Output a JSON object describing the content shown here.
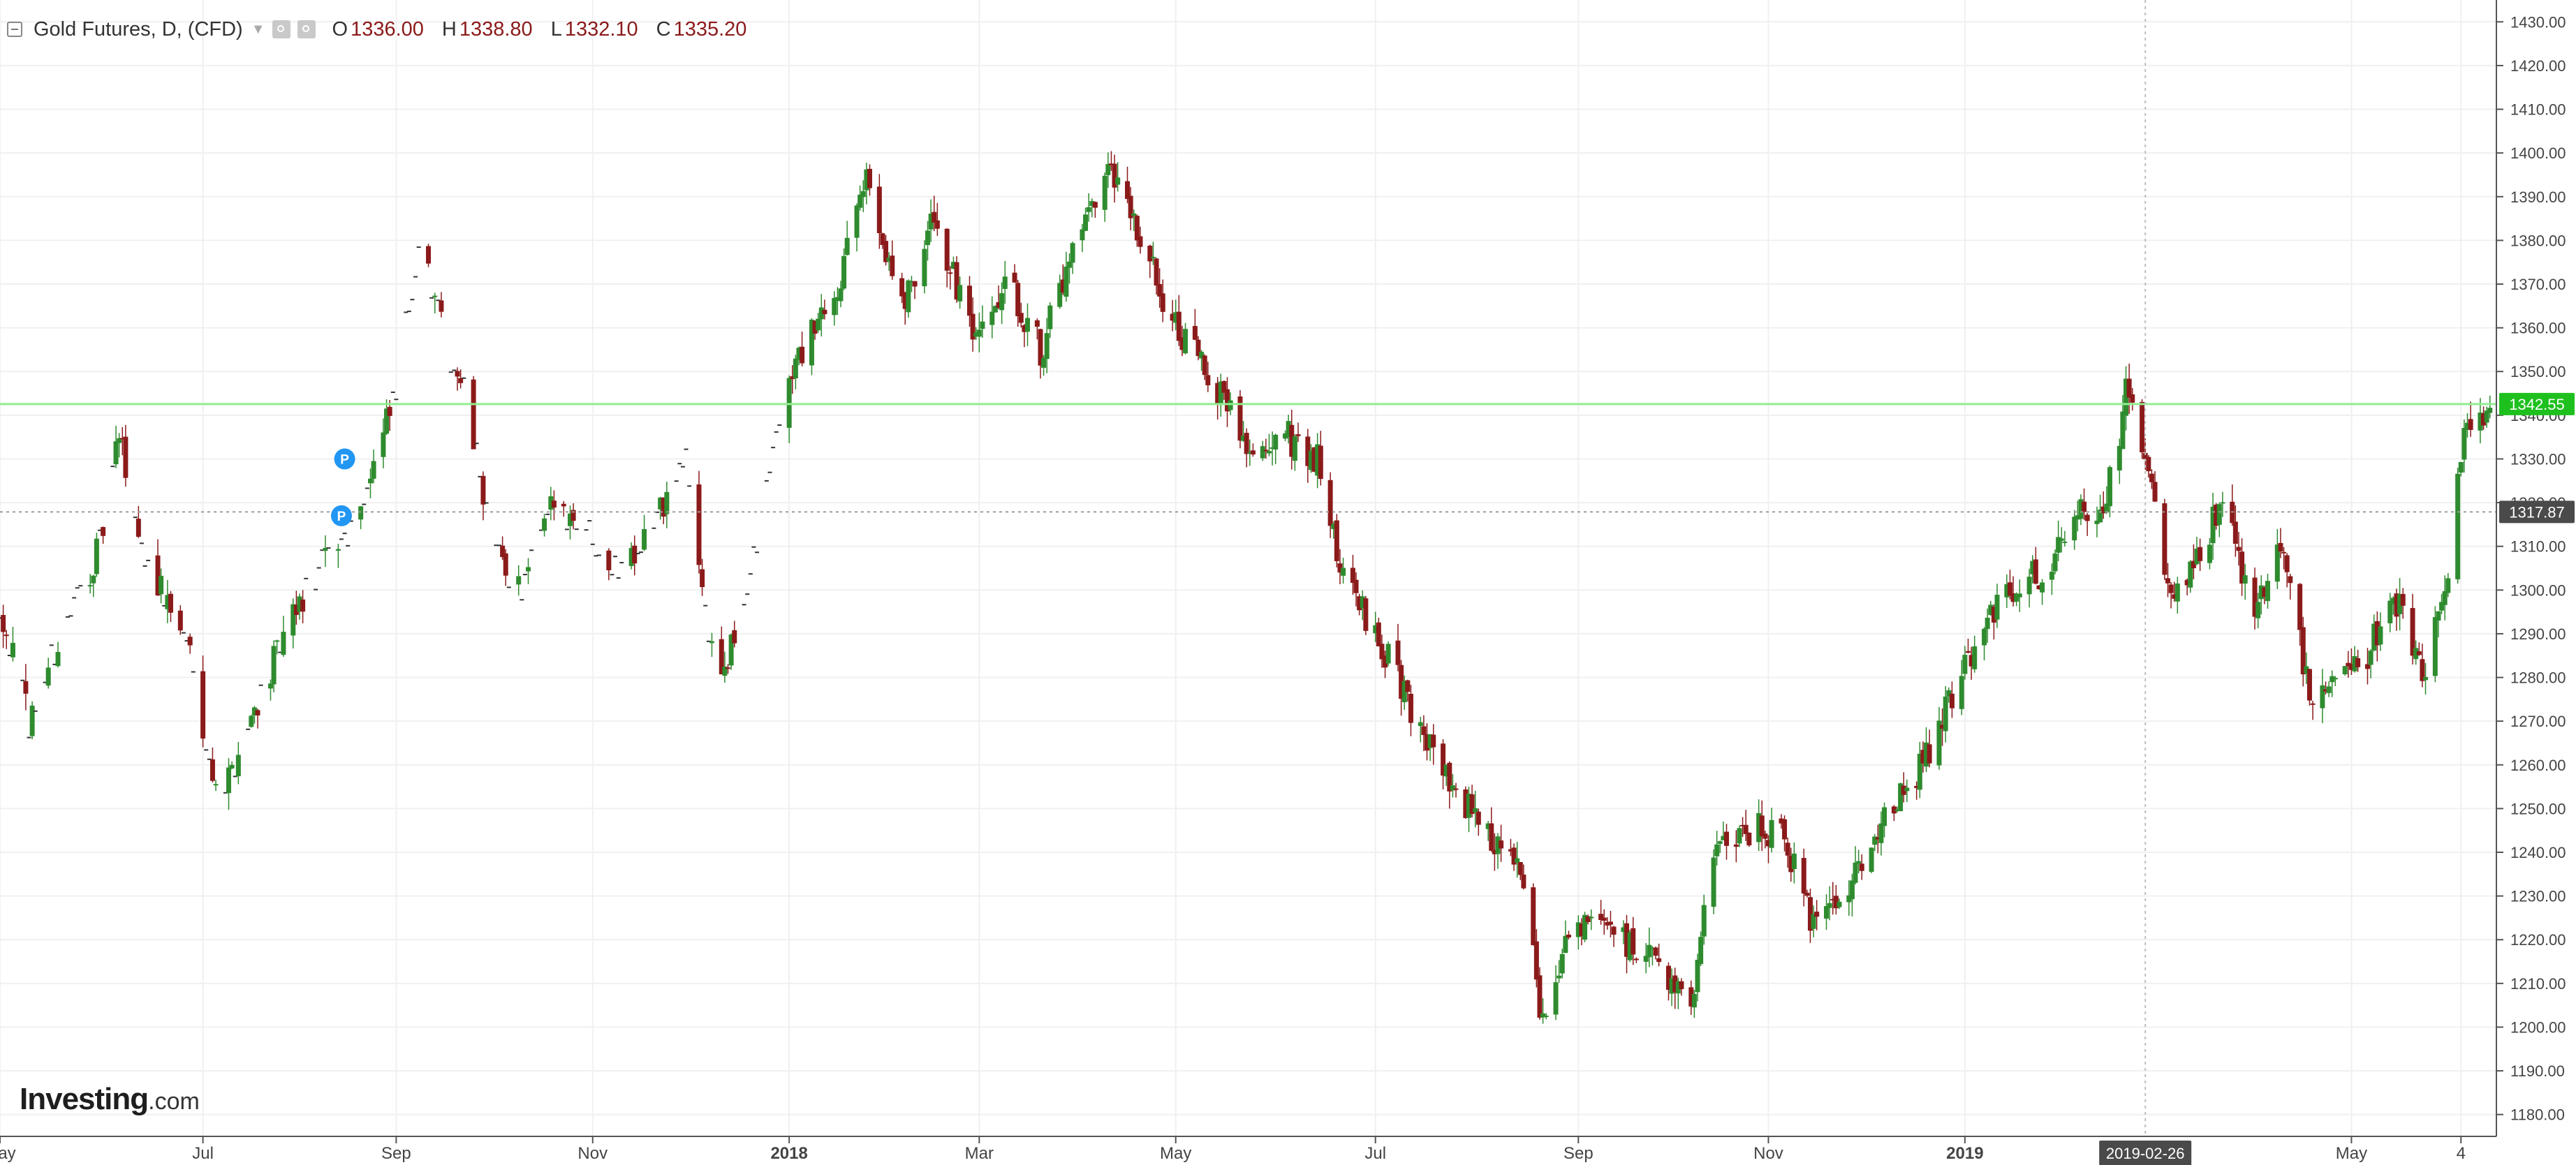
{
  "legend": {
    "title": "Gold Futures, D, (CFD)",
    "open_label": "O",
    "open": "1336.00",
    "high_label": "H",
    "high": "1338.80",
    "low_label": "L",
    "low": "1332.10",
    "close_label": "C",
    "close": "1335.20"
  },
  "logo": {
    "brand": "Investing",
    "domain": ".com"
  },
  "colors": {
    "up": "#2e8b2e",
    "down": "#8b1a1a",
    "price_line": "#90ee90",
    "price_badge": "#1ec01e",
    "crosshair_badge": "#4a4a4a",
    "grid": "#f0f0f0"
  },
  "chart_data": {
    "type": "candlestick",
    "title": "Gold Futures, D, (CFD)",
    "y_axis": {
      "range": [
        1175,
        1435
      ],
      "ticks": [
        1180,
        1190,
        1200,
        1210,
        1220,
        1230,
        1240,
        1250,
        1260,
        1270,
        1280,
        1290,
        1300,
        1310,
        1320,
        1330,
        1340,
        1350,
        1360,
        1370,
        1380,
        1390,
        1400,
        1410,
        1420,
        1430
      ],
      "tick_labels": [
        "1180.00",
        "1190.00",
        "1200.00",
        "1210.00",
        "1220.00",
        "1230.00",
        "1240.00",
        "1250.00",
        "1260.00",
        "1270.00",
        "1280.00",
        "1290.00",
        "1300.00",
        "1310.00",
        "1320.00",
        "1330.00",
        "1340.00",
        "1350.00",
        "1360.00",
        "1370.00",
        "1380.00",
        "1390.00",
        "1400.00",
        "1410.00",
        "1420.00",
        "1430.00"
      ]
    },
    "x_axis": {
      "range": [
        "2017-05-01",
        "2019-06-15"
      ],
      "ticks": [
        {
          "date": "2017-05-01",
          "label": "May",
          "bold": false
        },
        {
          "date": "2017-07-03",
          "label": "Jul",
          "bold": false
        },
        {
          "date": "2017-09-01",
          "label": "Sep",
          "bold": false
        },
        {
          "date": "2017-11-01",
          "label": "Nov",
          "bold": false
        },
        {
          "date": "2018-01-01",
          "label": "2018",
          "bold": true
        },
        {
          "date": "2018-03-01",
          "label": "Mar",
          "bold": false
        },
        {
          "date": "2018-05-01",
          "label": "May",
          "bold": false
        },
        {
          "date": "2018-07-02",
          "label": "Jul",
          "bold": false
        },
        {
          "date": "2018-09-03",
          "label": "Sep",
          "bold": false
        },
        {
          "date": "2018-11-01",
          "label": "Nov",
          "bold": false
        },
        {
          "date": "2019-01-01",
          "label": "2019",
          "bold": true
        },
        {
          "date": "2019-05-01",
          "label": "May",
          "bold": false
        },
        {
          "date": "2019-06-04",
          "label": "4",
          "bold": false
        }
      ]
    },
    "price_line": {
      "value": 1342.55,
      "label": "1342.55"
    },
    "crosshair": {
      "date": "2019-02-26",
      "date_label": "2019-02-26",
      "value": 1317.87,
      "value_label": "1317.87"
    },
    "markers": [
      {
        "date": "2017-08-16",
        "value": 1330,
        "label": "P"
      },
      {
        "date": "2017-08-15",
        "value": 1317,
        "label": "P"
      }
    ],
    "price_path": [
      [
        "2017-05-01",
        1297
      ],
      [
        "2017-05-10",
        1270
      ],
      [
        "2017-05-20",
        1290
      ],
      [
        "2017-06-01",
        1310
      ],
      [
        "2017-06-07",
        1335
      ],
      [
        "2017-06-14",
        1310
      ],
      [
        "2017-06-22",
        1297
      ],
      [
        "2017-06-30",
        1285
      ],
      [
        "2017-07-05",
        1260
      ],
      [
        "2017-07-10",
        1255
      ],
      [
        "2017-07-20",
        1275
      ],
      [
        "2017-08-01",
        1295
      ],
      [
        "2017-08-10",
        1307
      ],
      [
        "2017-08-18",
        1315
      ],
      [
        "2017-08-25",
        1328
      ],
      [
        "2017-09-01",
        1345
      ],
      [
        "2017-09-08",
        1380
      ],
      [
        "2017-09-15",
        1360
      ],
      [
        "2017-09-22",
        1345
      ],
      [
        "2017-10-02",
        1308
      ],
      [
        "2017-10-10",
        1300
      ],
      [
        "2017-10-20",
        1320
      ],
      [
        "2017-10-30",
        1315
      ],
      [
        "2017-11-08",
        1305
      ],
      [
        "2017-11-20",
        1315
      ],
      [
        "2017-11-30",
        1330
      ],
      [
        "2017-12-07",
        1290
      ],
      [
        "2017-12-12",
        1280
      ],
      [
        "2017-12-22",
        1310
      ],
      [
        "2017-12-29",
        1340
      ],
      [
        "2018-01-05",
        1355
      ],
      [
        "2018-01-15",
        1365
      ],
      [
        "2018-01-25",
        1395
      ],
      [
        "2018-02-05",
        1365
      ],
      [
        "2018-02-15",
        1385
      ],
      [
        "2018-02-28",
        1355
      ],
      [
        "2018-03-10",
        1370
      ],
      [
        "2018-03-20",
        1355
      ],
      [
        "2018-04-01",
        1380
      ],
      [
        "2018-04-11",
        1395
      ],
      [
        "2018-04-20",
        1380
      ],
      [
        "2018-05-01",
        1360
      ],
      [
        "2018-05-10",
        1350
      ],
      [
        "2018-05-16",
        1345
      ],
      [
        "2018-05-25",
        1330
      ],
      [
        "2018-06-05",
        1335
      ],
      [
        "2018-06-14",
        1330
      ],
      [
        "2018-06-21",
        1305
      ],
      [
        "2018-07-02",
        1290
      ],
      [
        "2018-07-12",
        1275
      ],
      [
        "2018-07-25",
        1255
      ],
      [
        "2018-08-05",
        1245
      ],
      [
        "2018-08-16",
        1235
      ],
      [
        "2018-08-23",
        1200
      ],
      [
        "2018-08-30",
        1220
      ],
      [
        "2018-09-10",
        1225
      ],
      [
        "2018-09-20",
        1218
      ],
      [
        "2018-10-01",
        1212
      ],
      [
        "2018-10-08",
        1205
      ],
      [
        "2018-10-15",
        1240
      ],
      [
        "2018-10-26",
        1245
      ],
      [
        "2018-11-05",
        1245
      ],
      [
        "2018-11-15",
        1222
      ],
      [
        "2018-11-25",
        1230
      ],
      [
        "2018-12-05",
        1245
      ],
      [
        "2018-12-15",
        1255
      ],
      [
        "2018-12-25",
        1270
      ],
      [
        "2019-01-05",
        1290
      ],
      [
        "2019-01-15",
        1300
      ],
      [
        "2019-01-28",
        1305
      ],
      [
        "2019-02-05",
        1318
      ],
      [
        "2019-02-14",
        1320
      ],
      [
        "2019-02-20",
        1345
      ],
      [
        "2019-02-26",
        1330
      ],
      [
        "2019-03-05",
        1300
      ],
      [
        "2019-03-12",
        1305
      ],
      [
        "2019-03-22",
        1320
      ],
      [
        "2019-04-01",
        1295
      ],
      [
        "2019-04-10",
        1310
      ],
      [
        "2019-04-18",
        1275
      ],
      [
        "2019-04-26",
        1280
      ],
      [
        "2019-05-06",
        1285
      ],
      [
        "2019-05-14",
        1300
      ],
      [
        "2019-05-23",
        1280
      ],
      [
        "2019-05-31",
        1305
      ],
      [
        "2019-06-05",
        1335
      ],
      [
        "2019-06-13",
        1342
      ]
    ]
  }
}
